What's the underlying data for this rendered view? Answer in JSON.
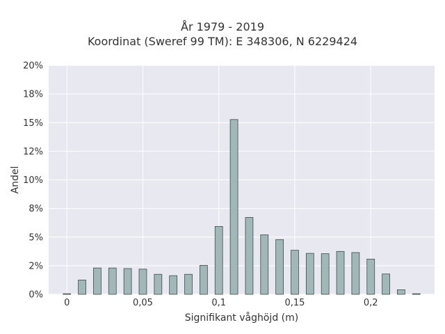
{
  "chart_data": {
    "type": "bar",
    "title_line1": "År 1979 - 2019",
    "title_line2": "Koordinat (Sweref 99 TM): E 348306, N 6229424",
    "xlabel": "Signifikant våghöjd (m)",
    "ylabel": "Andel",
    "x_ticks": [
      "0",
      "0,05",
      "0,1",
      "0,15",
      "0,2"
    ],
    "x_tick_values": [
      0,
      0.05,
      0.1,
      0.15,
      0.2
    ],
    "y_ticks": [
      "0%",
      "2%",
      "5%",
      "8%",
      "10%",
      "12%",
      "15%",
      "18%",
      "20%"
    ],
    "xlim": [
      -0.012,
      0.242
    ],
    "ylim": [
      0,
      0.2
    ],
    "grid": true,
    "bar_color": "#a2b8b8",
    "bar_edge_color": "#3e4a4a",
    "background": "#e8e8f0",
    "x": [
      0,
      0.01,
      0.02,
      0.03,
      0.04,
      0.05,
      0.06,
      0.07,
      0.08,
      0.09,
      0.1,
      0.11,
      0.12,
      0.13,
      0.14,
      0.15,
      0.16,
      0.17,
      0.18,
      0.19,
      0.2,
      0.21,
      0.22,
      0.23
    ],
    "values": [
      0.0005,
      0.0125,
      0.023,
      0.023,
      0.0225,
      0.022,
      0.0175,
      0.0163,
      0.0175,
      0.0253,
      0.0593,
      0.1527,
      0.0672,
      0.052,
      0.0478,
      0.0385,
      0.0358,
      0.0355,
      0.0375,
      0.0365,
      0.0308,
      0.0178,
      0.004,
      0.0005
    ]
  }
}
